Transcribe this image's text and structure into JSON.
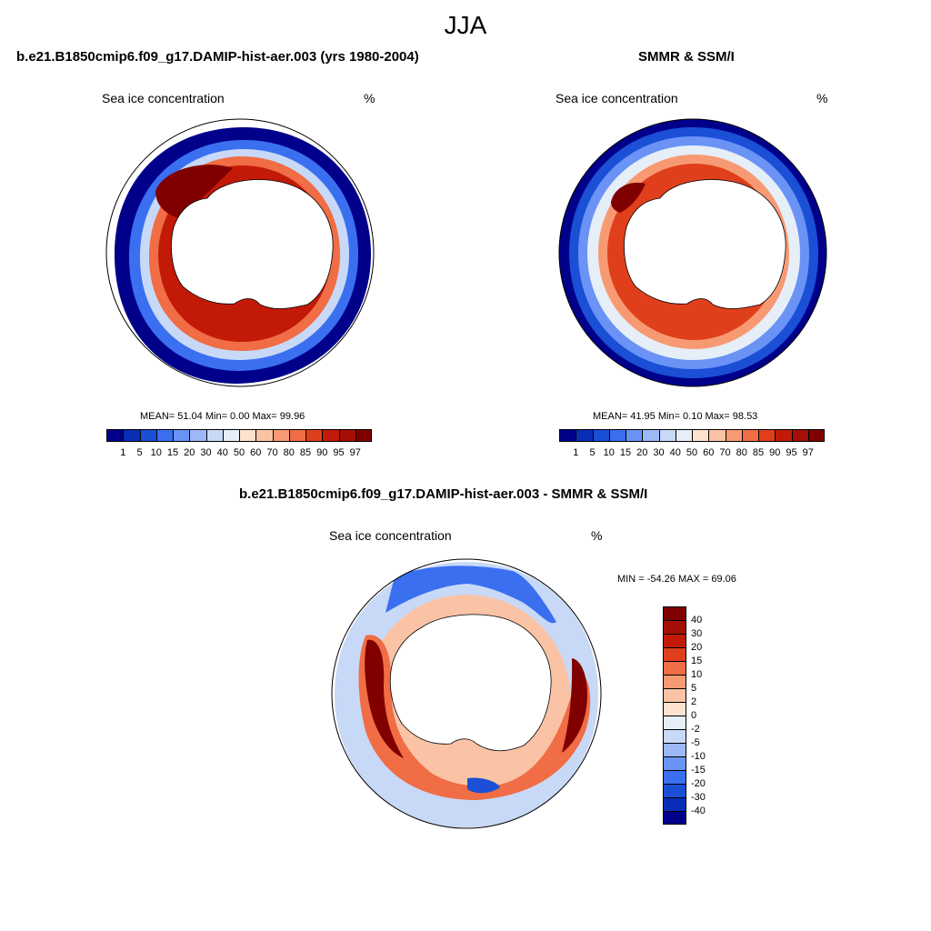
{
  "title": "JJA",
  "panels": [
    {
      "title": "b.e21.B1850cmip6.f09_g17.DAMIP-hist-aer.003 (yrs 1980-2004)",
      "subtitle_left": "Sea ice concentration",
      "subtitle_right": "%",
      "stats": "MEAN=  51.04  Min=   0.00  Max=  99.96"
    },
    {
      "title": "SMMR & SSM/I",
      "subtitle_left": "Sea ice concentration",
      "subtitle_right": "%",
      "stats": "MEAN=  41.95  Min=   0.10  Max=  98.53"
    }
  ],
  "diff_panel": {
    "title": "b.e21.B1850cmip6.f09_g17.DAMIP-hist-aer.003 - SMMR & SSM/I",
    "subtitle_left": "Sea ice concentration",
    "subtitle_right": "%",
    "stats": "MIN = -54.26 MAX =  69.06"
  },
  "colorbar_conc": {
    "labels": [
      "1",
      "5",
      "10",
      "15",
      "20",
      "30",
      "40",
      "50",
      "60",
      "70",
      "80",
      "85",
      "90",
      "95",
      "97"
    ],
    "colors": [
      "#00008b",
      "#0a2db8",
      "#1a4fd6",
      "#3a6ff0",
      "#6a93f5",
      "#9cb8f7",
      "#c8d9f7",
      "#e6eef8",
      "#fde2cf",
      "#fbc3a6",
      "#f79a74",
      "#f06d45",
      "#e03f1c",
      "#c31a08",
      "#a50f05",
      "#800000"
    ]
  },
  "colorbar_diff": {
    "labels": [
      "40",
      "30",
      "20",
      "15",
      "10",
      "5",
      "2",
      "0",
      "-2",
      "-5",
      "-10",
      "-15",
      "-20",
      "-30",
      "-40"
    ],
    "colors": [
      "#800000",
      "#a50f05",
      "#c31a08",
      "#e03f1c",
      "#f06d45",
      "#f79a74",
      "#fbc3a6",
      "#fde2cf",
      "#e6eef8",
      "#c8d9f7",
      "#9cb8f7",
      "#6a93f5",
      "#3a6ff0",
      "#1a4fd6",
      "#0a2db8",
      "#00008b"
    ]
  }
}
